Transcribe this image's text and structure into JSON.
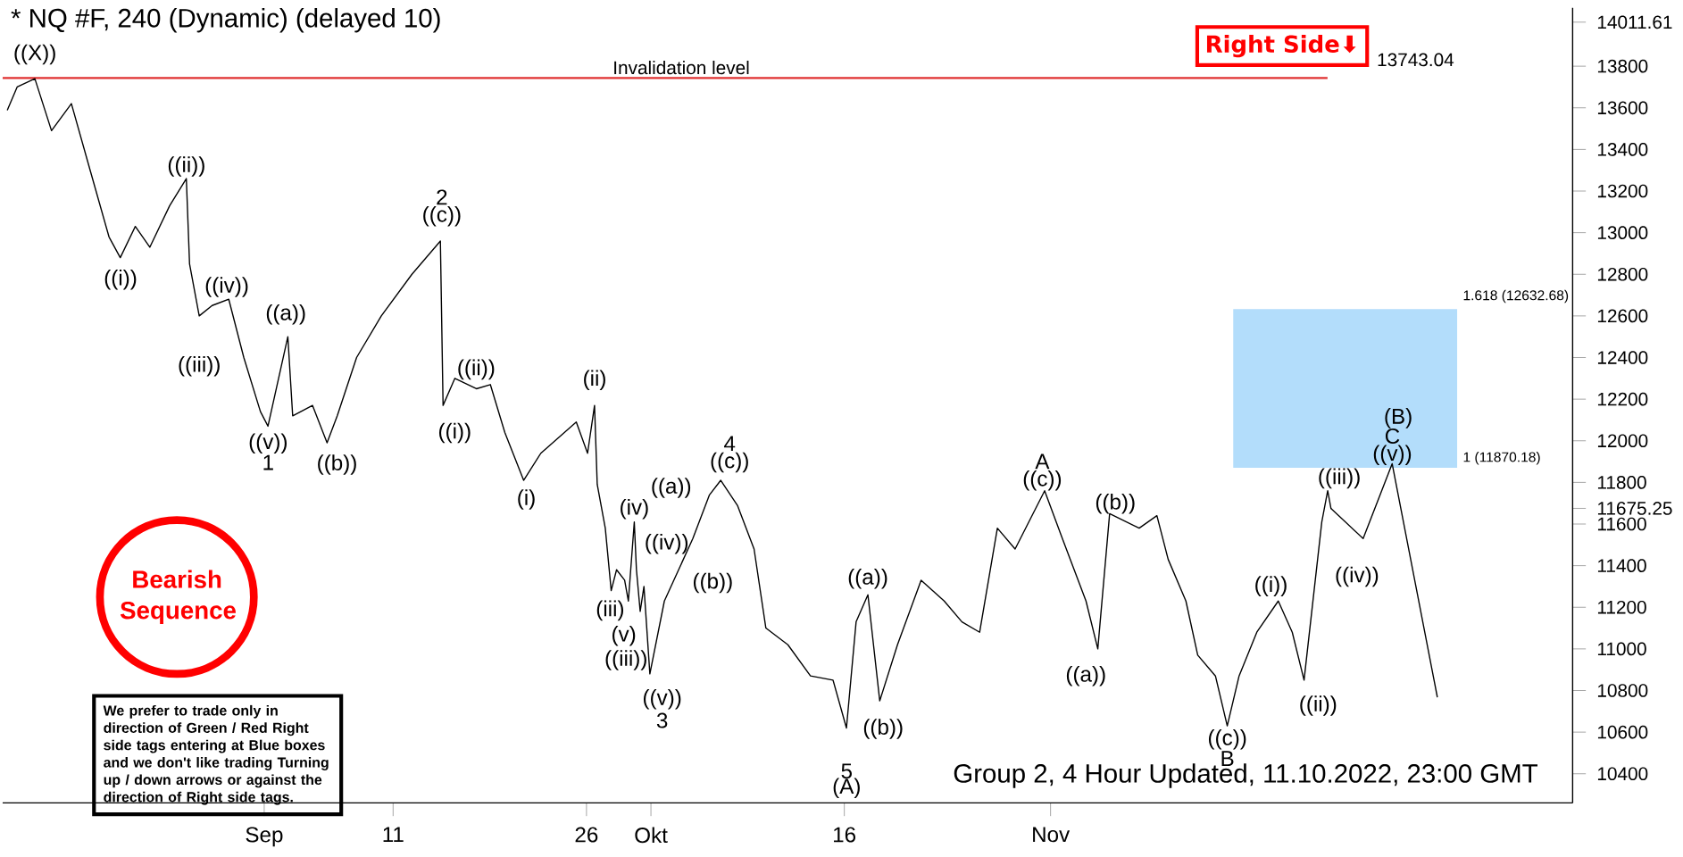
{
  "chart_data": {
    "type": "line",
    "title": "* NQ #F, 240 (Dynamic) (delayed 10)",
    "series": [
      {
        "color": "#000000",
        "x": [
          "2022-08-12T02:00",
          "2022-08-12T20:00",
          "2022-08-14T05:00",
          "2022-08-15T12:00",
          "2022-08-17T01:00",
          "2022-08-18T13:00",
          "2022-08-19T23:00",
          "2022-08-20T20:00",
          "2022-08-22T00:00",
          "2022-08-23T03:00",
          "2022-08-24T16:00",
          "2022-08-25T23:00",
          "2022-08-26T05:00",
          "2022-08-26T23:00",
          "2022-08-27T23:00",
          "2022-08-29T06:00",
          "2022-08-30T10:00",
          "2022-08-31T17:00",
          "2022-09-01T07:00",
          "2022-09-02T20:00",
          "2022-09-03T05:00",
          "2022-09-04T18:00",
          "2022-09-05T21:00",
          "2022-09-06T16:00",
          "2022-09-08T04:00",
          "2022-09-10T02:00",
          "2022-09-12T11:00",
          "2022-09-14T16:00",
          "2022-09-14T21:00",
          "2022-09-15T19:00",
          "2022-09-17T11:00",
          "2022-09-18T13:00",
          "2022-09-19T16:00",
          "2022-09-21T03:00",
          "2022-09-22T11:00",
          "2022-09-25T05:00",
          "2022-09-26T02:00",
          "2022-09-26T15:00",
          "2022-09-26T20:00",
          "2022-09-27T11:00",
          "2022-09-27T22:00",
          "2022-09-28T08:00",
          "2022-09-28T23:00",
          "2022-09-29T06:00",
          "2022-09-29T17:00",
          "2022-09-29T21:00",
          "2022-09-30T04:00",
          "2022-09-30T11:00",
          "2022-09-30T22:00",
          "2022-10-02T01:00",
          "2022-10-04T06:00",
          "2022-10-05T13:00",
          "2022-10-06T10:00",
          "2022-10-07T17:00",
          "2022-10-09T00:00",
          "2022-10-09T22:00",
          "2022-10-11T15:00",
          "2022-10-13T09:00",
          "2022-10-15T03:00",
          "2022-10-16T04:00",
          "2022-10-16T22:00",
          "2022-10-17T20:00",
          "2022-10-18T18:00",
          "2022-10-20T03:00",
          "2022-10-21T23:00",
          "2022-10-23T18:00",
          "2022-10-25T03:00",
          "2022-10-26T12:00",
          "2022-10-27T21:00",
          "2022-10-29T06:00",
          "2022-10-31T13:00",
          "2022-11-01T22:00",
          "2022-11-03T18:00",
          "2022-11-04T16:00",
          "2022-11-05T14:00",
          "2022-11-07T21:00",
          "2022-11-09T06:00",
          "2022-11-10T03:00",
          "2022-11-11T12:00",
          "2022-11-12T10:00",
          "2022-11-13T19:00",
          "2022-11-14T17:00",
          "2022-11-15T15:00",
          "2022-11-17T00:00",
          "2022-11-18T16:00",
          "2022-11-19T18:00",
          "2022-11-20T16:00",
          "2022-11-22T01:00",
          "2022-11-22T12:00",
          "2022-11-22T18:00"
        ],
        "values": [
          13590,
          13700,
          13740,
          13490,
          13620,
          13290,
          12980,
          12880,
          13030,
          12930,
          13130,
          13260,
          12850,
          12600,
          12650,
          12680,
          12400,
          12140,
          12070,
          12500,
          12120,
          12170,
          11990,
          12120,
          12400,
          12600,
          12800,
          12960,
          12170,
          12300,
          12250,
          12270,
          12040,
          11810,
          11940,
          12090,
          11940,
          12170,
          11790,
          11580,
          11280,
          11380,
          11330,
          11230,
          11610,
          11380,
          11180,
          11300,
          10880,
          11230,
          11530,
          11740,
          11810,
          11690,
          11480,
          11100,
          11020,
          10870,
          10850,
          10620,
          11130,
          11260,
          10750,
          11020,
          11330,
          11230,
          11130,
          11080,
          11580,
          11480,
          11760,
          11530,
          11230,
          11000,
          11650,
          11580,
          11640,
          11430,
          11230,
          10970,
          10870,
          10630,
          10870,
          11080,
          11230,
          11080,
          10850,
          11610,
          11760,
          11675.25
        ]
      },
      {
        "color": "#000000",
        "x": [
          "2022-11-22T18:00",
          "2022-11-25T06:00",
          "2022-11-27T12:00",
          "2022-12-01T00:00"
        ],
        "values": [
          11675.25,
          11530,
          11890,
          10770
        ]
      }
    ],
    "xlim": [
      "2022-08-11T17:00",
      "2022-12-11T12:00"
    ],
    "ylim": [
      10260,
      14080
    ],
    "xticks": [
      {
        "value": "2022-09-01",
        "label": "Sep"
      },
      {
        "value": "2022-09-11",
        "label": "11"
      },
      {
        "value": "2022-09-26",
        "label": "26"
      },
      {
        "value": "2022-10-01",
        "label": "Okt"
      },
      {
        "value": "2022-10-16",
        "label": "16"
      },
      {
        "value": "2022-11-01",
        "label": "Nov"
      }
    ],
    "yticks": [
      10400,
      10600,
      10800,
      11000,
      11200,
      11400,
      11600,
      11675.25,
      11800,
      12000,
      12200,
      12400,
      12600,
      12800,
      13000,
      13200,
      13400,
      13600,
      13800,
      14011.61
    ],
    "ref_lines": [
      {
        "axis": "y",
        "value": 13743.04,
        "label": "Invalidation level",
        "color": "#e03030"
      }
    ],
    "bands": [
      {
        "axis": "y",
        "from": 11870.18,
        "to": 12632.68,
        "color": "#b3ddfb"
      }
    ],
    "annotations": [
      "We prefer to trade only in direction of Green / Red Right side tags entering at Blue boxes and we don't like trading Turning up / down arrows or against the direction of Right side tags.",
      "Right Side⬇",
      "Bearish Sequence",
      "Group 2, 4 Hour Updated, 11.10.2022, 23:00 GMT",
      "13743.04",
      "1.618 (12632.68)",
      "1 (11870.18)",
      "((X))",
      "((i))",
      "((ii))",
      "((iv))",
      "((iii))",
      "((v))",
      "1",
      "((a))",
      "((b))",
      "2",
      "((c))",
      "((i))",
      "((ii))",
      "(i)",
      "(ii)",
      "(iii)",
      "(iv)",
      "(v)",
      "((iv))",
      "((iii))",
      "((v))",
      "3",
      "((a))",
      "((c))",
      "4",
      "((b))",
      "((a))",
      "((b))",
      "5",
      "(A)",
      "A",
      "((c))",
      "((b))",
      "((a))",
      "((c))",
      "B",
      "((i))",
      "((ii))",
      "((iii))",
      "((iv))",
      "((v))",
      "C",
      "(B)"
    ]
  }
}
